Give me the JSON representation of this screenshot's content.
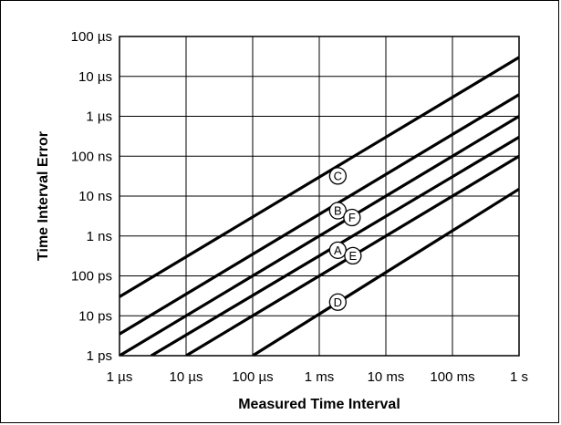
{
  "chart_data": {
    "type": "line",
    "title": "",
    "xlabel": "Measured Time Interval",
    "ylabel": "Time Interval Error",
    "x_scale": "log",
    "y_scale": "log",
    "xlim": [
      1e-06,
      1
    ],
    "ylim": [
      1e-12,
      0.0001
    ],
    "grid": true,
    "x_ticks": [
      {
        "value": 1e-06,
        "label": "1 µs"
      },
      {
        "value": 1e-05,
        "label": "10 µs"
      },
      {
        "value": 0.0001,
        "label": "100 µs"
      },
      {
        "value": 0.001,
        "label": "1 ms"
      },
      {
        "value": 0.01,
        "label": "10 ms"
      },
      {
        "value": 0.1,
        "label": "100 ms"
      },
      {
        "value": 1,
        "label": "1 s"
      }
    ],
    "y_ticks": [
      {
        "value": 0.0001,
        "label": "100 µs"
      },
      {
        "value": 1e-05,
        "label": "10 µs"
      },
      {
        "value": 1e-06,
        "label": "1 µs"
      },
      {
        "value": 1e-07,
        "label": "100 ns"
      },
      {
        "value": 1e-08,
        "label": "10 ns"
      },
      {
        "value": 1e-09,
        "label": "1 ns"
      },
      {
        "value": 1e-10,
        "label": "100 ps"
      },
      {
        "value": 1e-11,
        "label": "10 ps"
      },
      {
        "value": 1e-12,
        "label": "1 ps"
      }
    ],
    "series": [
      {
        "points": [
          [
            1e-06,
            3e-11
          ],
          [
            1,
            3e-05
          ]
        ]
      },
      {
        "points": [
          [
            1e-06,
            3.5e-12
          ],
          [
            1,
            3.5e-06
          ]
        ]
      },
      {
        "points": [
          [
            1e-06,
            1e-12
          ],
          [
            1,
            1e-06
          ]
        ]
      },
      {
        "points": [
          [
            3e-06,
            1e-12
          ],
          [
            1,
            3e-07
          ]
        ]
      },
      {
        "points": [
          [
            1e-05,
            1e-12
          ],
          [
            1,
            1e-07
          ]
        ]
      },
      {
        "points": [
          [
            0.0001,
            1e-12
          ],
          [
            1,
            1.5e-08
          ]
        ]
      }
    ],
    "annotations": [
      {
        "text": "C",
        "x": 0.0019,
        "y": 3.2e-08
      },
      {
        "text": "B",
        "x": 0.0019,
        "y": 4.3e-09
      },
      {
        "text": "F",
        "x": 0.0031,
        "y": 2.9e-09
      },
      {
        "text": "A",
        "x": 0.0019,
        "y": 4.4e-10
      },
      {
        "text": "E",
        "x": 0.0032,
        "y": 3.2e-10
      },
      {
        "text": "D",
        "x": 0.0019,
        "y": 2.2e-11
      }
    ]
  }
}
